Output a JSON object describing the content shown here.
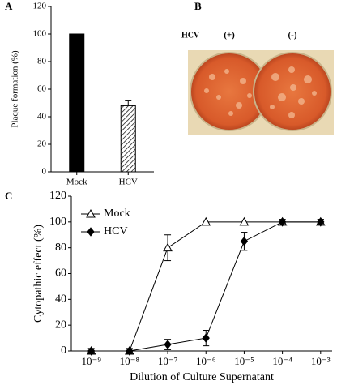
{
  "chart_data": [
    {
      "type": "bar",
      "panel": "A",
      "ylabel": "Plaque formation (%)",
      "categories": [
        "Mock",
        "HCV"
      ],
      "values": [
        100,
        48
      ],
      "errors": [
        null,
        4
      ],
      "color": "#000000",
      "patterns": [
        "solid",
        "hatch"
      ],
      "ylim": [
        0,
        120
      ],
      "yticks": [
        0,
        20,
        40,
        60,
        80,
        100,
        120
      ]
    },
    {
      "type": "line",
      "panel": "C",
      "ylabel": "Cytopathic effect (%)",
      "xlabel": "Dilution of Culture Supernatant",
      "log_x": true,
      "x": [
        1e-09,
        1e-08,
        1e-07,
        1e-06,
        1e-05,
        0.0001,
        0.001
      ],
      "series": [
        {
          "name": "Mock",
          "color": "#000000",
          "marker": "open-triangle",
          "values": [
            0,
            0,
            80,
            100,
            100,
            100,
            100
          ],
          "errors": [
            0,
            0,
            10,
            0,
            0,
            2,
            2
          ]
        },
        {
          "name": "HCV",
          "color": "#000000",
          "marker": "filled-diamond",
          "values": [
            0,
            0,
            5,
            10,
            85,
            100,
            100
          ],
          "errors": [
            2,
            2,
            4,
            6,
            7,
            2,
            2
          ]
        }
      ],
      "xlim": [
        3e-10,
        0.002
      ],
      "xticks": [
        {
          "value": 1e-09,
          "label": "10⁻⁹"
        },
        {
          "value": 1e-08,
          "label": "10⁻⁸"
        },
        {
          "value": 1e-07,
          "label": "10⁻⁷"
        },
        {
          "value": 1e-06,
          "label": "10⁻⁶"
        },
        {
          "value": 1e-05,
          "label": "10⁻⁵"
        },
        {
          "value": 0.0001,
          "label": "10⁻⁴"
        },
        {
          "value": 0.001,
          "label": "10⁻³"
        }
      ],
      "ylim": [
        0,
        120
      ],
      "yticks": [
        0,
        20,
        40,
        60,
        80,
        100,
        120
      ],
      "legend": "top-left"
    }
  ],
  "photo": {
    "panel": "B",
    "label": "HCV",
    "plates": [
      "(+)",
      "(-)"
    ]
  }
}
